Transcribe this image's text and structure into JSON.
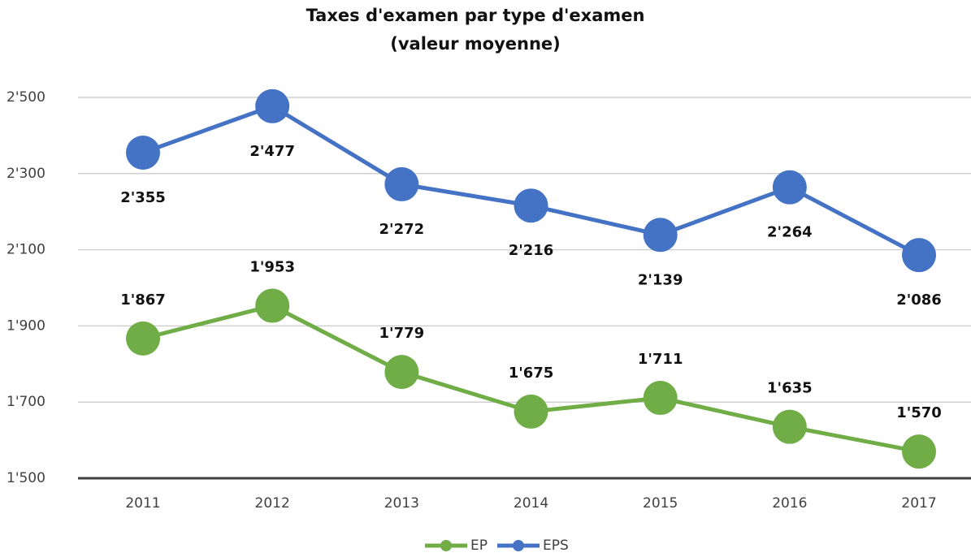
{
  "chart_data": {
    "type": "line",
    "title": "Taxes d'examen par type d'examen",
    "subtitle": "(valeur moyenne)",
    "categories": [
      "2011",
      "2012",
      "2013",
      "2014",
      "2015",
      "2016",
      "2017"
    ],
    "series": [
      {
        "name": "EP",
        "color": "#70ad47",
        "values": [
          1867,
          1953,
          1779,
          1675,
          1711,
          1635,
          1570
        ],
        "value_labels": [
          "1'867",
          "1'953",
          "1'779",
          "1'675",
          "1'711",
          "1'635",
          "1'570"
        ]
      },
      {
        "name": "EPS",
        "color": "#4472c4",
        "values": [
          2355,
          2477,
          2272,
          2216,
          2139,
          2264,
          2086
        ],
        "value_labels": [
          "2'355",
          "2'477",
          "2'272",
          "2'216",
          "2'139",
          "2'264",
          "2'086"
        ]
      }
    ],
    "ylim": [
      1500,
      2500
    ],
    "yticks": [
      {
        "value": 1500,
        "label": "1'500"
      },
      {
        "value": 1700,
        "label": "1'700"
      },
      {
        "value": 1900,
        "label": "1'900"
      },
      {
        "value": 2100,
        "label": "2'100"
      },
      {
        "value": 2300,
        "label": "2'300"
      },
      {
        "value": 2500,
        "label": "2'500"
      }
    ],
    "grid": true,
    "legend": "bottom"
  }
}
